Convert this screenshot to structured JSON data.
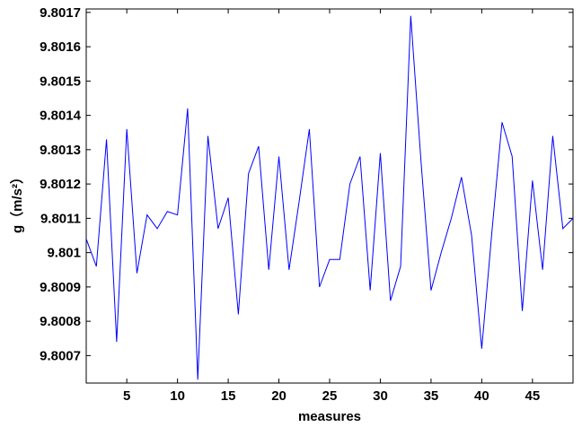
{
  "chart_data": {
    "type": "line",
    "x_label": "measures",
    "y_label": "g（m/s²）",
    "x": [
      1,
      2,
      3,
      4,
      5,
      6,
      7,
      8,
      9,
      10,
      11,
      12,
      13,
      14,
      15,
      16,
      17,
      18,
      19,
      20,
      21,
      22,
      23,
      24,
      25,
      26,
      27,
      28,
      29,
      30,
      31,
      32,
      33,
      34,
      35,
      36,
      37,
      38,
      39,
      40,
      41,
      42,
      43,
      44,
      45,
      46,
      47,
      48,
      49
    ],
    "series": [
      {
        "color": "#0000ff",
        "values": [
          9.80104,
          9.80096,
          9.80133,
          9.80074,
          9.80136,
          9.80094,
          9.80111,
          9.80107,
          9.80112,
          9.80111,
          9.80142,
          9.80063,
          9.80134,
          9.80107,
          9.80116,
          9.80082,
          9.80123,
          9.80131,
          9.80095,
          9.80128,
          9.80095,
          9.80115,
          9.80136,
          9.8009,
          9.80098,
          9.80098,
          9.8012,
          9.80128,
          9.80089,
          9.80129,
          9.80086,
          9.80096,
          9.80169,
          9.80127,
          9.80089,
          9.801,
          9.8011,
          9.80122,
          9.80105,
          9.80072,
          9.80106,
          9.80138,
          9.80128,
          9.80083,
          9.80121,
          9.80095,
          9.80134,
          9.80107,
          9.8011
        ]
      }
    ],
    "xlim": [
      1,
      49
    ],
    "xticks": [
      5,
      10,
      15,
      20,
      25,
      30,
      35,
      40,
      45
    ],
    "ylim": [
      9.80062,
      9.80171
    ],
    "yticks": [
      9.8007,
      9.8008,
      9.8009,
      9.801,
      9.8011,
      9.8012,
      9.8013,
      9.8014,
      9.8015,
      9.8016,
      9.8017
    ],
    "grid": false
  }
}
